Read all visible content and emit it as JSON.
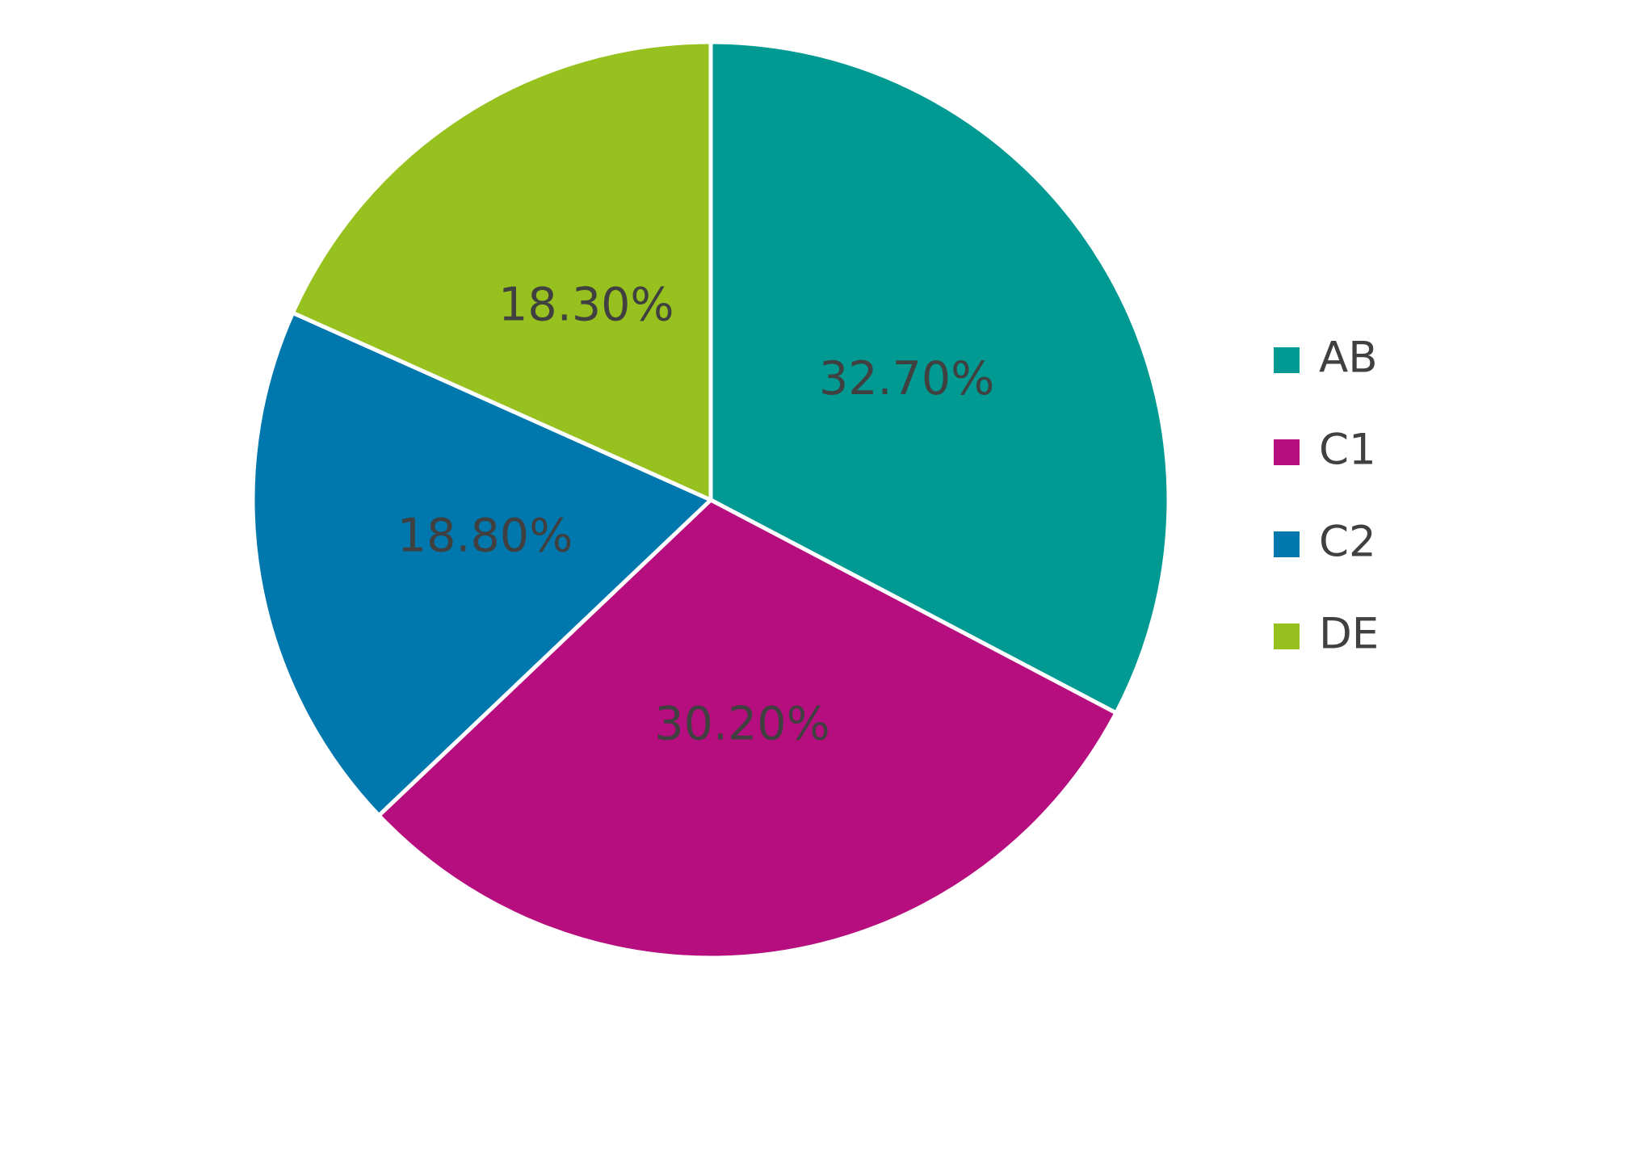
{
  "chart_data": {
    "type": "pie",
    "categories": [
      "AB",
      "C1",
      "C2",
      "DE"
    ],
    "values": [
      32.7,
      30.2,
      18.8,
      18.3
    ],
    "value_labels": [
      "32.70%",
      "30.20%",
      "18.80%",
      "18.30%"
    ],
    "colors": [
      "#009a93",
      "#b60e7e",
      "#0078ae",
      "#97c11f"
    ],
    "legend": "right"
  }
}
